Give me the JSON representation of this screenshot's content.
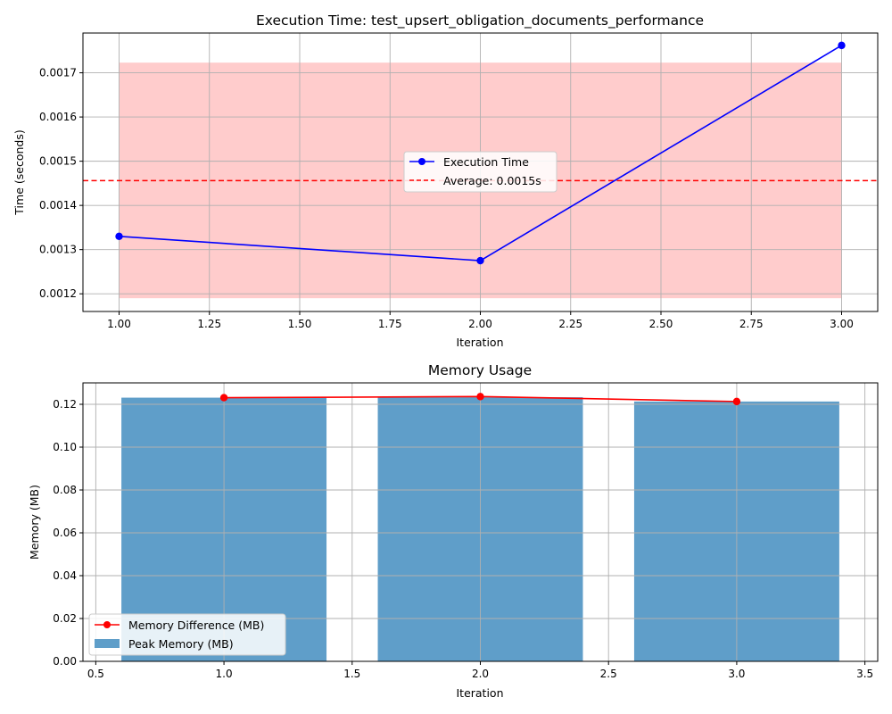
{
  "chart_data": [
    {
      "type": "line",
      "title": "Execution Time: test_upsert_obligation_documents_performance",
      "xlabel": "Iteration",
      "ylabel": "Time (seconds)",
      "xlim": [
        0.9,
        3.1
      ],
      "ylim": [
        0.00116,
        0.00179
      ],
      "xticks": [
        1.0,
        1.25,
        1.5,
        1.75,
        2.0,
        2.25,
        2.5,
        2.75,
        3.0
      ],
      "xtick_labels": [
        "1.00",
        "1.25",
        "1.50",
        "1.75",
        "2.00",
        "2.25",
        "2.50",
        "2.75",
        "3.00"
      ],
      "yticks": [
        0.0012,
        0.0013,
        0.0014,
        0.0015,
        0.0016,
        0.0017
      ],
      "ytick_labels": [
        "0.0012",
        "0.0013",
        "0.0014",
        "0.0015",
        "0.0016",
        "0.0017"
      ],
      "grid": true,
      "legend_position": "center",
      "band": {
        "x": [
          1.0,
          3.0
        ],
        "y": [
          0.00119,
          0.001723
        ],
        "color": "#ffcccc"
      },
      "series": [
        {
          "name": "Execution Time",
          "x": [
            1,
            2,
            3
          ],
          "values": [
            0.00133,
            0.001275,
            0.001762
          ],
          "color": "#0000ff",
          "marker": "circle"
        }
      ],
      "hlines": [
        {
          "name": "Average: 0.0015s",
          "y": 0.001456,
          "color": "#ff0000",
          "style": "dashed"
        }
      ]
    },
    {
      "type": "bar",
      "title": "Memory Usage",
      "xlabel": "Iteration",
      "ylabel": "Memory (MB)",
      "xlim": [
        0.45,
        3.55
      ],
      "ylim": [
        0,
        0.13
      ],
      "xticks": [
        0.5,
        1.0,
        1.5,
        2.0,
        2.5,
        3.0,
        3.5
      ],
      "xtick_labels": [
        "0.5",
        "1.0",
        "1.5",
        "2.0",
        "2.5",
        "3.0",
        "3.5"
      ],
      "yticks": [
        0,
        0.02,
        0.04,
        0.06,
        0.08,
        0.1,
        0.12
      ],
      "ytick_labels": [
        "0.00",
        "0.02",
        "0.04",
        "0.06",
        "0.08",
        "0.10",
        "0.12"
      ],
      "grid": true,
      "legend_position": "bottom-left",
      "bar_width": 0.8,
      "bars": {
        "name": "Peak Memory (MB)",
        "x": [
          1,
          2,
          3
        ],
        "values": [
          0.1231,
          0.1233,
          0.1213
        ],
        "color": "#5f9ec9"
      },
      "series": [
        {
          "name": "Memory Difference (MB)",
          "x": [
            1,
            2,
            3
          ],
          "values": [
            0.1231,
            0.1236,
            0.1213
          ],
          "color": "#ff0000",
          "marker": "circle"
        }
      ]
    }
  ]
}
